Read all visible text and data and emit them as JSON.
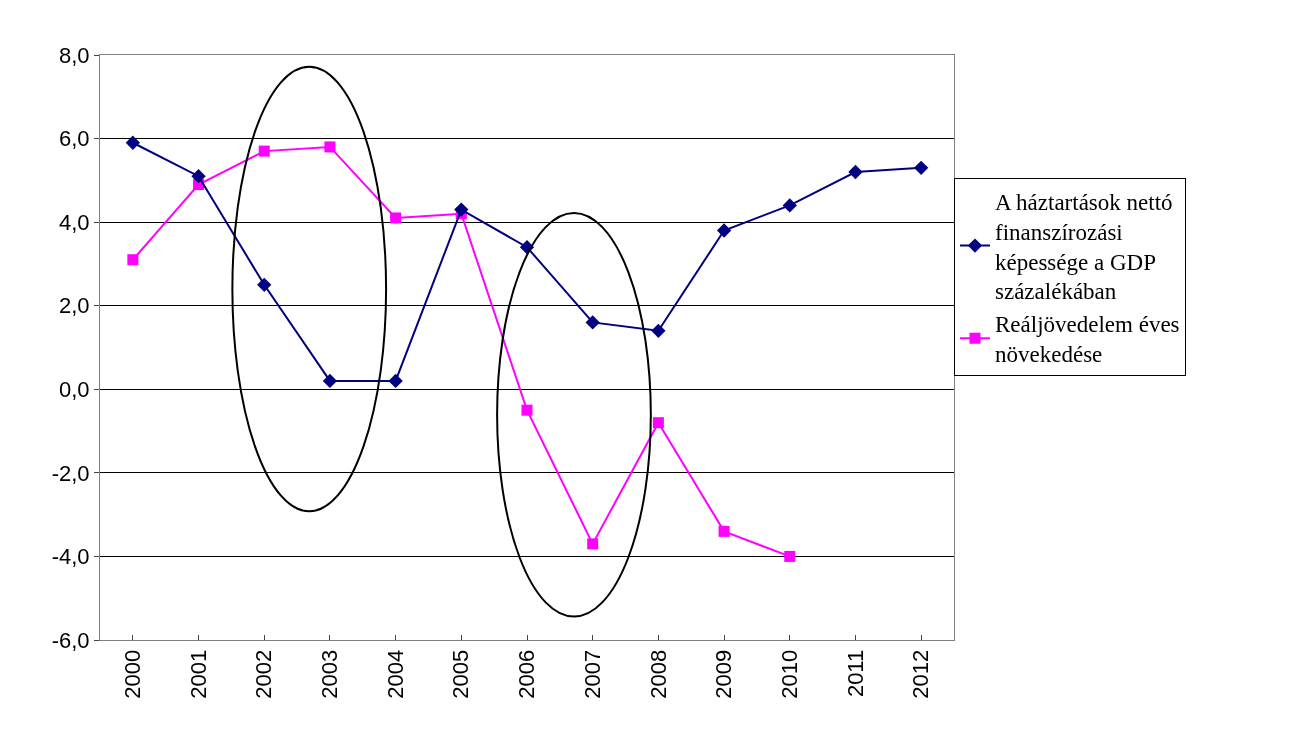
{
  "chart_data": {
    "type": "line",
    "categories": [
      "2000",
      "2001",
      "2002",
      "2003",
      "2004",
      "2005",
      "2006",
      "2007",
      "2008",
      "2009",
      "2010",
      "2011",
      "2012"
    ],
    "series": [
      {
        "name": "A háztartások nettó finanszírozási képessége a GDP százalékában",
        "color": "#000080",
        "marker": "diamond",
        "values": [
          5.9,
          5.1,
          2.5,
          0.2,
          0.2,
          4.3,
          3.4,
          1.6,
          1.4,
          3.8,
          4.4,
          5.2,
          5.3
        ]
      },
      {
        "name": "Reáljövedelem éves növekedése",
        "color": "#ff00ff",
        "marker": "square",
        "values": [
          3.1,
          4.9,
          5.7,
          5.8,
          4.1,
          4.2,
          -0.5,
          -3.7,
          -0.8,
          -3.4,
          -4.0,
          null,
          null
        ]
      }
    ],
    "ylim": [
      -6,
      8
    ],
    "yticks": [
      {
        "value": -6,
        "label": "-6,0"
      },
      {
        "value": -4,
        "label": "-4,0"
      },
      {
        "value": -2,
        "label": "-2,0"
      },
      {
        "value": 0,
        "label": "0,0"
      },
      {
        "value": 2,
        "label": "2,0"
      },
      {
        "value": 4,
        "label": "4,0"
      },
      {
        "value": 6,
        "label": "6,0"
      },
      {
        "value": 8,
        "label": "8,0"
      }
    ],
    "grid": "y",
    "legend": "right"
  }
}
